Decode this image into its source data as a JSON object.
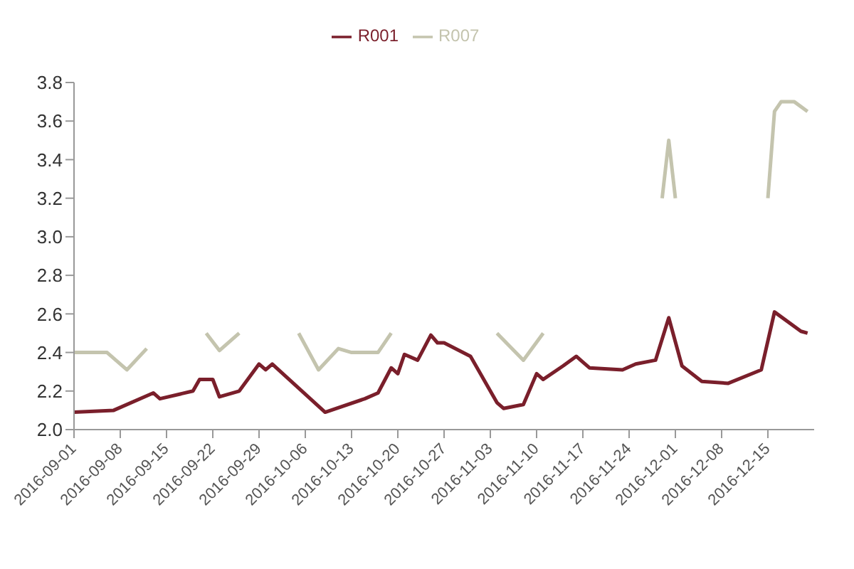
{
  "chart_data": {
    "type": "line",
    "legend": "top",
    "marker": "none",
    "line_style": "solid",
    "xlim": [
      "2016-09-01",
      "2016-12-22"
    ],
    "ylim": [
      2.0,
      3.8
    ],
    "yticks": [
      {
        "value": 2,
        "label": "2.0"
      },
      {
        "value": 2.2,
        "label": "2.2"
      },
      {
        "value": 2.4,
        "label": "2.4"
      },
      {
        "value": 2.6,
        "label": "2.6"
      },
      {
        "value": 2.8,
        "label": "2.8"
      },
      {
        "value": 3,
        "label": "3.0"
      },
      {
        "value": 3.2,
        "label": "3.2"
      },
      {
        "value": 3.4,
        "label": "3.4"
      },
      {
        "value": 3.6,
        "label": "3.6"
      },
      {
        "value": 3.8,
        "label": "3.8"
      }
    ],
    "xticks": [
      "2016-09-01",
      "2016-09-08",
      "2016-09-15",
      "2016-09-22",
      "2016-09-29",
      "2016-10-06",
      "2016-10-13",
      "2016-10-20",
      "2016-10-27",
      "2016-11-03",
      "2016-11-10",
      "2016-11-17",
      "2016-11-24",
      "2016-12-01",
      "2016-12-08",
      "2016-12-15"
    ],
    "series": [
      {
        "name": "R001",
        "color": "#7a1f2b",
        "x": [
          "2016-09-01",
          "2016-09-07",
          "2016-09-13",
          "2016-09-14",
          "2016-09-19",
          "2016-09-20",
          "2016-09-22",
          "2016-09-23",
          "2016-09-26",
          "2016-09-29",
          "2016-09-30",
          "2016-10-01",
          "2016-10-09",
          "2016-10-15",
          "2016-10-17",
          "2016-10-19",
          "2016-10-20",
          "2016-10-21",
          "2016-10-23",
          "2016-10-25",
          "2016-10-26",
          "2016-10-27",
          "2016-10-31",
          "2016-11-04",
          "2016-11-05",
          "2016-11-08",
          "2016-11-10",
          "2016-11-11",
          "2016-11-14",
          "2016-11-16",
          "2016-11-18",
          "2016-11-23",
          "2016-11-25",
          "2016-11-28",
          "2016-11-30",
          "2016-12-02",
          "2016-12-05",
          "2016-12-09",
          "2016-12-14",
          "2016-12-16",
          "2016-12-20",
          "2016-12-21"
        ],
        "values": [
          2.09,
          2.1,
          2.19,
          2.16,
          2.2,
          2.26,
          2.26,
          2.17,
          2.2,
          2.34,
          2.31,
          2.34,
          2.09,
          2.16,
          2.19,
          2.32,
          2.29,
          2.39,
          2.36,
          2.49,
          2.45,
          2.45,
          2.38,
          2.14,
          2.11,
          2.13,
          2.29,
          2.26,
          2.33,
          2.38,
          2.32,
          2.31,
          2.34,
          2.36,
          2.58,
          2.33,
          2.25,
          2.24,
          2.31,
          2.61,
          2.51,
          2.5
        ]
      },
      {
        "name": "R007",
        "color": "#c4c4ae",
        "x": [
          "2016-09-01",
          "2016-09-06",
          "2016-09-09",
          "2016-09-12",
          "2016-09-14",
          "2016-09-21",
          "2016-09-23",
          "2016-09-26",
          "2016-09-28",
          "2016-10-05",
          "2016-10-08",
          "2016-10-11",
          "2016-10-13",
          "2016-10-17",
          "2016-10-19",
          "2016-10-21",
          "2016-11-04",
          "2016-11-08",
          "2016-11-11",
          "2016-11-13",
          "2016-11-29",
          "2016-11-30",
          "2016-12-01",
          "2016-12-03",
          "2016-12-15",
          "2016-12-16",
          "2016-12-17",
          "2016-12-19",
          "2016-12-21"
        ],
        "values": [
          2.4,
          2.4,
          2.31,
          2.42,
          null,
          2.5,
          2.41,
          2.5,
          null,
          2.5,
          2.31,
          2.42,
          2.4,
          2.4,
          2.5,
          null,
          2.5,
          2.36,
          2.5,
          null,
          3.2,
          3.5,
          3.2,
          null,
          3.2,
          3.65,
          3.7,
          3.7,
          3.65
        ]
      }
    ]
  }
}
